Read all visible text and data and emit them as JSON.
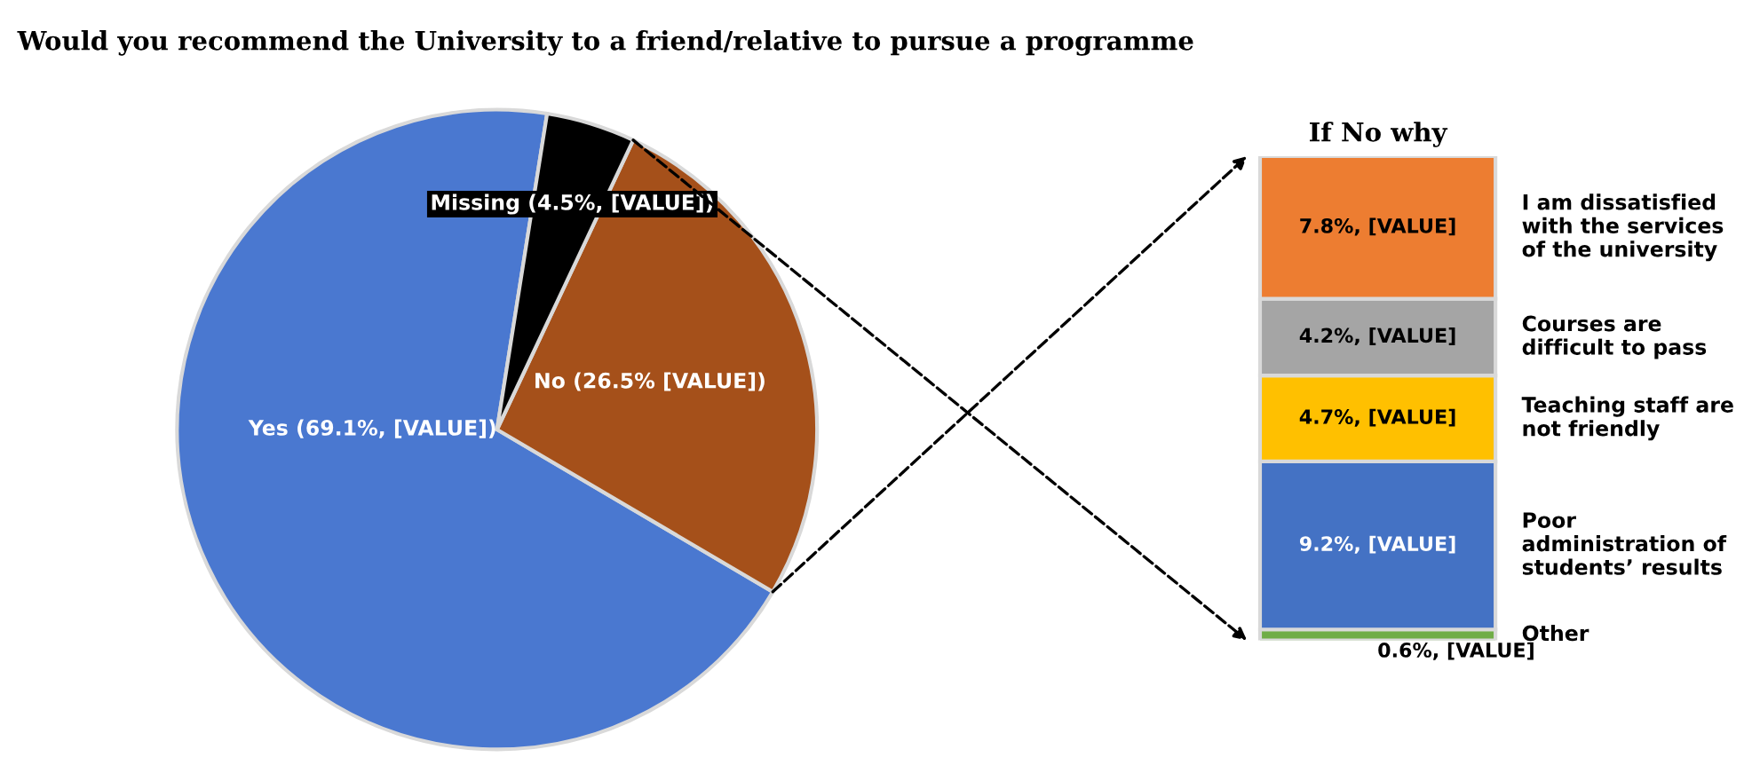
{
  "chart_data": [
    {
      "type": "pie",
      "title": "Would you recommend the University to a friend/relative to pursue a programme",
      "categories": [
        "Yes",
        "No",
        "Missing"
      ],
      "values": [
        69.1,
        26.5,
        4.5
      ],
      "colors": [
        "#4a78d0",
        "#a5501a",
        "#000000"
      ],
      "value_labels": [
        "(69.1%, [VALUE])",
        "(26.5% [VALUE])",
        "(4.5%, [VALUE])"
      ]
    },
    {
      "type": "bar",
      "title": "If No why",
      "stacked": true,
      "categories": [
        null
      ],
      "tick_labels": false,
      "series": [
        {
          "name": "Other",
          "color": "#70ad47",
          "values": [
            0.6
          ],
          "value_labels": [
            "0.6%, [VALUE]"
          ]
        },
        {
          "name": "Poor administration of students’ results",
          "color": "#4472c4",
          "values": [
            9.2
          ],
          "value_labels": [
            "9.2%, [VALUE]"
          ]
        },
        {
          "name": "Teaching staff are not friendly",
          "color": "#ffc000",
          "values": [
            4.7
          ],
          "value_labels": [
            "4.7%, [VALUE]"
          ]
        },
        {
          "name": "Courses are difficult to pass",
          "color": "#a5a5a5",
          "values": [
            4.2
          ],
          "value_labels": [
            "4.2%, [VALUE]"
          ]
        },
        {
          "name": "I am dissatisfied with the services of the university",
          "color": "#ed7d31",
          "values": [
            7.8
          ],
          "value_labels": [
            "7.8%, [VALUE]"
          ]
        }
      ]
    }
  ]
}
